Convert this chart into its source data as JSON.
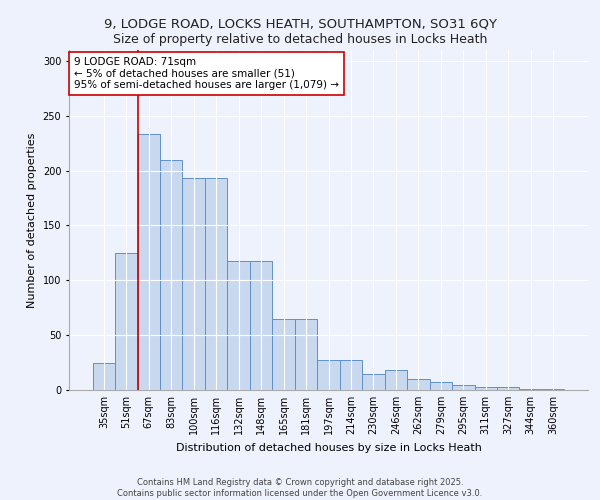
{
  "title_line1": "9, LODGE ROAD, LOCKS HEATH, SOUTHAMPTON, SO31 6QY",
  "title_line2": "Size of property relative to detached houses in Locks Heath",
  "xlabel": "Distribution of detached houses by size in Locks Heath",
  "ylabel": "Number of detached properties",
  "categories": [
    "35sqm",
    "51sqm",
    "67sqm",
    "83sqm",
    "100sqm",
    "116sqm",
    "132sqm",
    "148sqm",
    "165sqm",
    "181sqm",
    "197sqm",
    "214sqm",
    "230sqm",
    "246sqm",
    "262sqm",
    "279sqm",
    "295sqm",
    "311sqm",
    "327sqm",
    "344sqm",
    "360sqm"
  ],
  "bar_heights": [
    25,
    125,
    233,
    210,
    193,
    193,
    118,
    118,
    65,
    65,
    27,
    27,
    15,
    18,
    10,
    7,
    5,
    3,
    3,
    1,
    1
  ],
  "bar_color": "#c8d8ef",
  "bar_edge_color": "#6090c8",
  "vline_color": "#cc0000",
  "vline_x": 1.5,
  "annotation_text": "9 LODGE ROAD: 71sqm\n← 5% of detached houses are smaller (51)\n95% of semi-detached houses are larger (1,079) →",
  "annotation_box_color": "#ffffff",
  "annotation_box_edge_color": "#cc0000",
  "ylim": [
    0,
    310
  ],
  "yticks": [
    0,
    50,
    100,
    150,
    200,
    250,
    300
  ],
  "background_color": "#eef2fc",
  "axes_background_color": "#eef2fc",
  "footer_text": "Contains HM Land Registry data © Crown copyright and database right 2025.\nContains public sector information licensed under the Open Government Licence v3.0.",
  "title_fontsize": 9.5,
  "subtitle_fontsize": 9,
  "axis_label_fontsize": 8,
  "tick_fontsize": 7,
  "annotation_fontsize": 7.5,
  "footer_fontsize": 6
}
